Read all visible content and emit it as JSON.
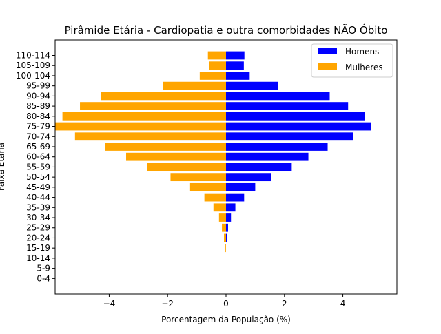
{
  "chart_data": {
    "type": "bar",
    "orientation": "horizontal",
    "title": "Pirâmide Etária - Cardiopatia e outra comorbidades NÃO Óbito",
    "xlabel": "Porcentagem da População (%)",
    "ylabel": "Faixa Etária",
    "xlim": [
      -5.85,
      5.85
    ],
    "xticks": [
      -4,
      -2,
      0,
      2,
      4
    ],
    "xtick_labels": [
      "−4",
      "−2",
      "0",
      "2",
      "4"
    ],
    "grid": false,
    "legend_position": "top-right",
    "categories": [
      "0-4",
      "5-9",
      "10-14",
      "15-19",
      "20-24",
      "25-29",
      "30-34",
      "35-39",
      "40-44",
      "45-49",
      "50-54",
      "55-59",
      "60-64",
      "65-69",
      "70-74",
      "75-79",
      "80-84",
      "85-89",
      "90-94",
      "95-99",
      "100-104",
      "105-109",
      "110-114"
    ],
    "series": [
      {
        "name": "Homens",
        "color": "#0000ff",
        "values": [
          0,
          0,
          0,
          0,
          0.04,
          0.07,
          0.17,
          0.32,
          0.62,
          1.0,
          1.55,
          2.25,
          2.82,
          3.48,
          4.35,
          4.97,
          4.75,
          4.18,
          3.55,
          1.77,
          0.81,
          0.61,
          0.63
        ]
      },
      {
        "name": "Mulheres",
        "color": "#ffa500",
        "values": [
          0,
          0,
          0,
          -0.02,
          -0.07,
          -0.14,
          -0.24,
          -0.43,
          -0.74,
          -1.23,
          -1.9,
          -2.7,
          -3.42,
          -4.15,
          -5.17,
          -5.85,
          -5.6,
          -5.0,
          -4.28,
          -2.15,
          -0.9,
          -0.58,
          -0.62
        ]
      }
    ]
  }
}
